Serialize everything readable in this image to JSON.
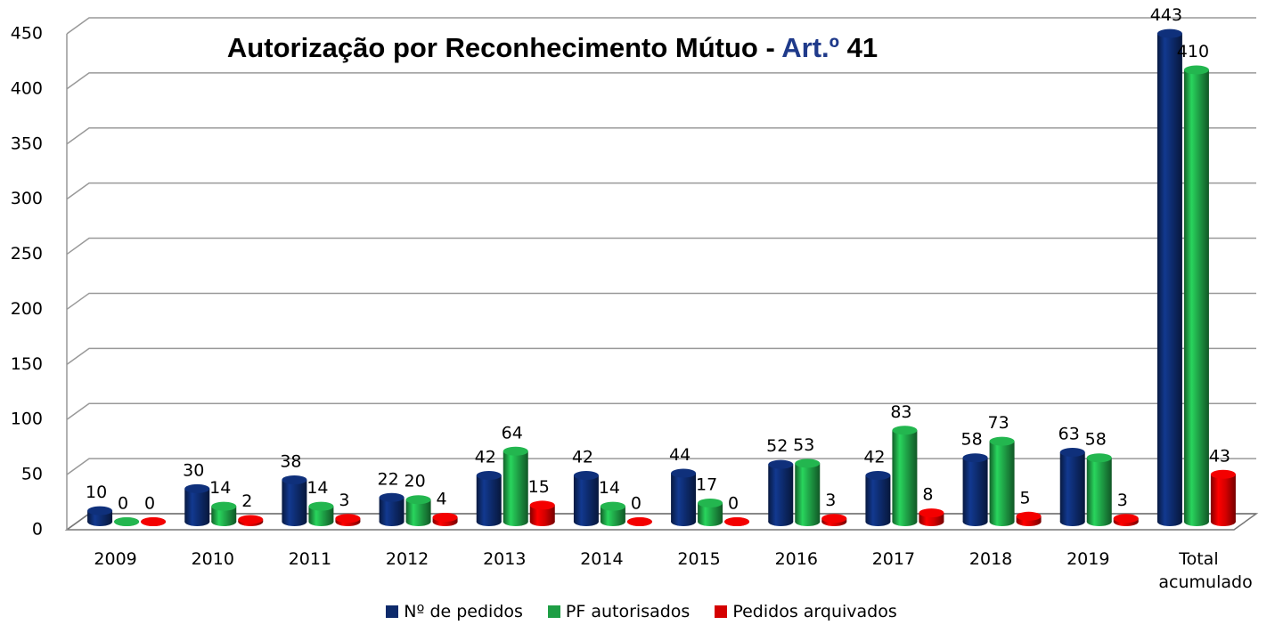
{
  "chart_data": {
    "type": "bar",
    "title": [
      {
        "text": "Autorização por Reconhecimento Mútuo - ",
        "color": "#000000"
      },
      {
        "text": "Art.º",
        "color": "#1f3a8a"
      },
      {
        "text": " 41",
        "color": "#000000"
      }
    ],
    "categories": [
      "2009",
      "2010",
      "2011",
      "2012",
      "2013",
      "2014",
      "2015",
      "2016",
      "2017",
      "2018",
      "2019",
      "Total acumulado"
    ],
    "series": [
      {
        "name": "Nº de pedidos",
        "color": "#0d2a6b",
        "values": [
          10,
          30,
          38,
          22,
          42,
          42,
          44,
          52,
          42,
          58,
          63,
          443
        ]
      },
      {
        "name": "PF autorisados",
        "color": "#1e9e45",
        "values": [
          0,
          14,
          14,
          20,
          64,
          14,
          17,
          53,
          83,
          73,
          58,
          410
        ]
      },
      {
        "name": "Pedidos arquivados",
        "color": "#d40000",
        "values": [
          0,
          2,
          3,
          4,
          15,
          0,
          0,
          3,
          8,
          5,
          3,
          43
        ]
      }
    ],
    "ylim": [
      0,
      450
    ],
    "yticks": [
      0,
      50,
      100,
      150,
      200,
      250,
      300,
      350,
      400,
      450
    ],
    "grid": true,
    "legend": "bottom"
  }
}
